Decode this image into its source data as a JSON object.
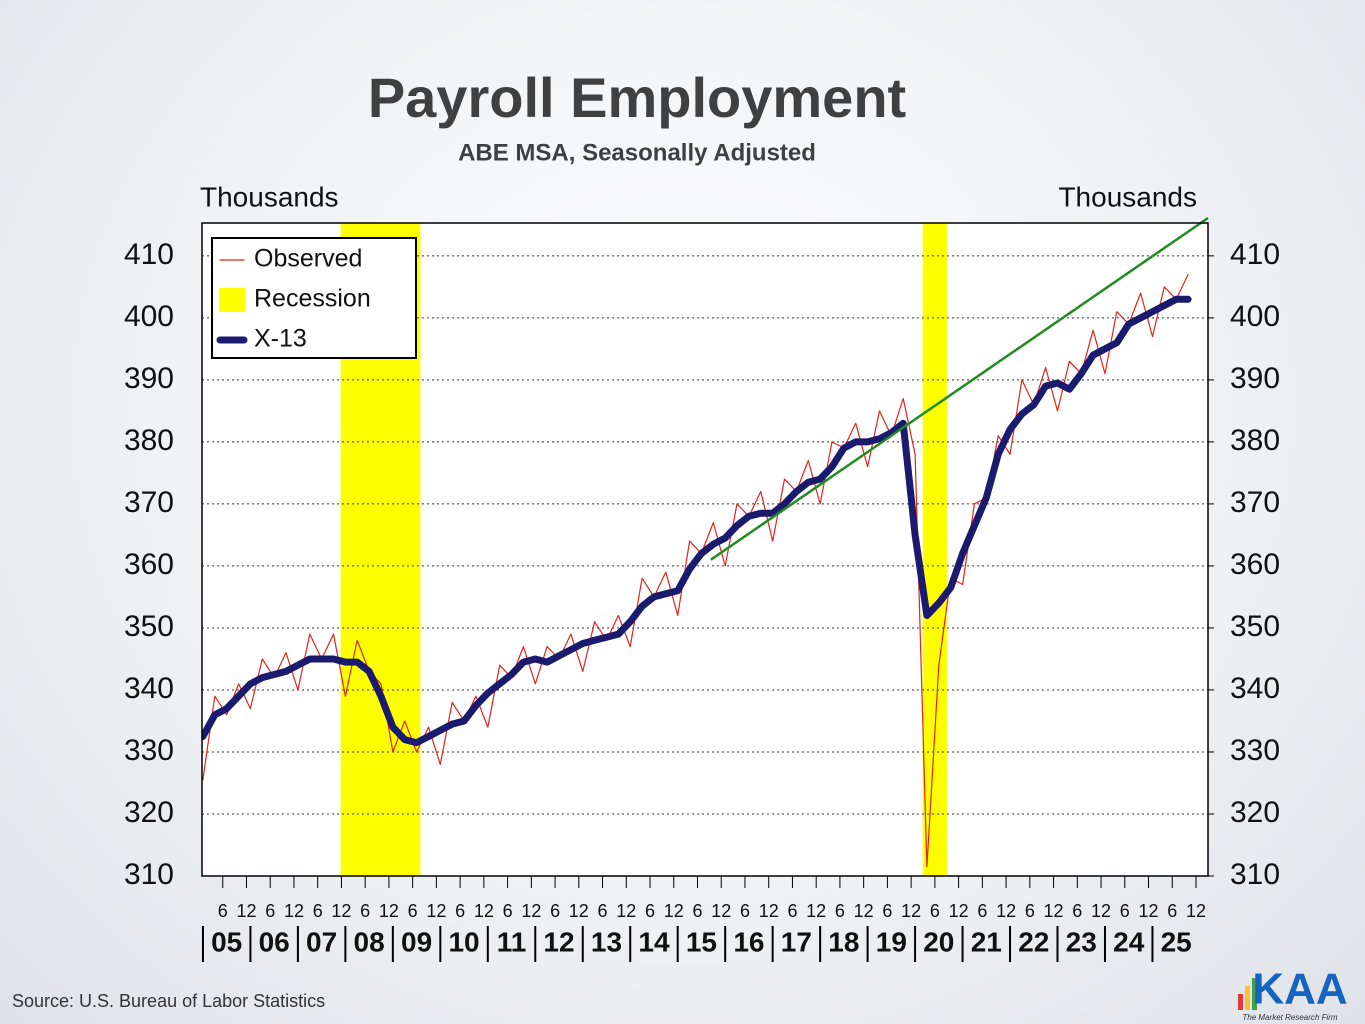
{
  "chart_data": {
    "type": "line",
    "title": "Payroll Employment",
    "subtitle": "ABE MSA,  Seasonally Adjusted",
    "y_label": "Thousands",
    "y2_label": "Thousands",
    "source": "Source: U.S. Bureau of Labor Statistics",
    "logo": {
      "text": "KAA",
      "tagline": "The Market Research Firm"
    },
    "grid": true,
    "legend_position": "upper-left",
    "xlim": [
      2004.98,
      2026.17
    ],
    "ylim": [
      310,
      415.3
    ],
    "y2lim": [
      310,
      415.3
    ],
    "yticks": [
      310,
      320,
      330,
      340,
      350,
      360,
      370,
      380,
      390,
      400,
      410
    ],
    "y2ticks": [
      310,
      320,
      330,
      340,
      350,
      360,
      370,
      380,
      390,
      400,
      410
    ],
    "xticks": [
      {
        "value": 2005.417,
        "label": "6"
      },
      {
        "value": 2005.917,
        "label": "12"
      },
      {
        "value": 2006.417,
        "label": "6"
      },
      {
        "value": 2006.917,
        "label": "12"
      },
      {
        "value": 2007.417,
        "label": "6"
      },
      {
        "value": 2007.917,
        "label": "12"
      },
      {
        "value": 2008.417,
        "label": "6"
      },
      {
        "value": 2008.917,
        "label": "12"
      },
      {
        "value": 2009.417,
        "label": "6"
      },
      {
        "value": 2009.917,
        "label": "12"
      },
      {
        "value": 2010.417,
        "label": "6"
      },
      {
        "value": 2010.917,
        "label": "12"
      },
      {
        "value": 2011.417,
        "label": "6"
      },
      {
        "value": 2011.917,
        "label": "12"
      },
      {
        "value": 2012.417,
        "label": "6"
      },
      {
        "value": 2012.917,
        "label": "12"
      },
      {
        "value": 2013.417,
        "label": "6"
      },
      {
        "value": 2013.917,
        "label": "12"
      },
      {
        "value": 2014.417,
        "label": "6"
      },
      {
        "value": 2014.917,
        "label": "12"
      },
      {
        "value": 2015.417,
        "label": "6"
      },
      {
        "value": 2015.917,
        "label": "12"
      },
      {
        "value": 2016.417,
        "label": "6"
      },
      {
        "value": 2016.917,
        "label": "12"
      },
      {
        "value": 2017.417,
        "label": "6"
      },
      {
        "value": 2017.917,
        "label": "12"
      },
      {
        "value": 2018.417,
        "label": "6"
      },
      {
        "value": 2018.917,
        "label": "12"
      },
      {
        "value": 2019.417,
        "label": "6"
      },
      {
        "value": 2019.917,
        "label": "12"
      },
      {
        "value": 2020.417,
        "label": "6"
      },
      {
        "value": 2020.917,
        "label": "12"
      },
      {
        "value": 2021.417,
        "label": "6"
      },
      {
        "value": 2021.917,
        "label": "12"
      },
      {
        "value": 2022.417,
        "label": "6"
      },
      {
        "value": 2022.917,
        "label": "12"
      },
      {
        "value": 2023.417,
        "label": "6"
      },
      {
        "value": 2023.917,
        "label": "12"
      },
      {
        "value": 2024.417,
        "label": "6"
      },
      {
        "value": 2024.917,
        "label": "12"
      },
      {
        "value": 2025.417,
        "label": "6"
      },
      {
        "value": 2025.917,
        "label": "12"
      }
    ],
    "year_ticks": [
      {
        "value": 2005.5,
        "label": "05"
      },
      {
        "value": 2006.5,
        "label": "06"
      },
      {
        "value": 2007.5,
        "label": "07"
      },
      {
        "value": 2008.5,
        "label": "08"
      },
      {
        "value": 2009.5,
        "label": "09"
      },
      {
        "value": 2010.5,
        "label": "10"
      },
      {
        "value": 2011.5,
        "label": "11"
      },
      {
        "value": 2012.5,
        "label": "12"
      },
      {
        "value": 2013.5,
        "label": "13"
      },
      {
        "value": 2014.5,
        "label": "14"
      },
      {
        "value": 2015.5,
        "label": "15"
      },
      {
        "value": 2016.5,
        "label": "16"
      },
      {
        "value": 2017.5,
        "label": "17"
      },
      {
        "value": 2018.5,
        "label": "18"
      },
      {
        "value": 2019.5,
        "label": "19"
      },
      {
        "value": 2020.5,
        "label": "20"
      },
      {
        "value": 2021.5,
        "label": "21"
      },
      {
        "value": 2022.5,
        "label": "22"
      },
      {
        "value": 2023.5,
        "label": "23"
      },
      {
        "value": 2024.5,
        "label": "24"
      },
      {
        "value": 2025.5,
        "label": "25"
      }
    ],
    "recession": {
      "name": "Recession",
      "color": "#ffff00",
      "spans": [
        [
          2007.9,
          2009.58
        ],
        [
          2020.16,
          2020.67
        ]
      ]
    },
    "x": [
      2005,
      2005.25,
      2005.5,
      2005.75,
      2006,
      2006.25,
      2006.5,
      2006.75,
      2007,
      2007.25,
      2007.5,
      2007.75,
      2008,
      2008.25,
      2008.5,
      2008.75,
      2009,
      2009.25,
      2009.5,
      2009.75,
      2010,
      2010.25,
      2010.5,
      2010.75,
      2011,
      2011.25,
      2011.5,
      2011.75,
      2012,
      2012.25,
      2012.5,
      2012.75,
      2013,
      2013.25,
      2013.5,
      2013.75,
      2014,
      2014.25,
      2014.5,
      2014.75,
      2015,
      2015.25,
      2015.5,
      2015.75,
      2016,
      2016.25,
      2016.5,
      2016.75,
      2017,
      2017.25,
      2017.5,
      2017.75,
      2018,
      2018.25,
      2018.5,
      2018.75,
      2019,
      2019.25,
      2019.5,
      2019.75,
      2020,
      2020.25,
      2020.5,
      2020.75,
      2021,
      2021.25,
      2021.5,
      2021.75,
      2022,
      2022.25,
      2022.5,
      2022.75,
      2023,
      2023.25,
      2023.5,
      2023.75,
      2024,
      2024.25,
      2024.5,
      2024.75,
      2025,
      2025.25,
      2025.5,
      2025.75
    ],
    "series": [
      {
        "name": "Observed",
        "color": "#e0241b",
        "width": 1.2,
        "values": [
          325.5,
          339,
          336,
          341,
          337,
          345,
          342,
          346,
          340,
          349,
          345,
          349,
          339,
          348,
          343,
          341,
          330,
          335,
          330,
          334,
          328,
          338,
          335,
          339,
          334,
          344,
          342,
          347,
          341,
          347,
          345,
          349,
          343,
          351,
          348,
          352,
          347,
          358,
          355,
          359,
          352,
          364,
          362,
          367,
          360,
          370,
          368,
          372,
          364,
          374,
          372,
          377,
          370,
          380,
          379,
          383,
          376,
          385,
          381,
          387,
          378,
          311.5,
          344,
          358,
          357,
          370,
          371,
          381,
          378,
          390,
          386,
          392,
          385,
          393,
          391,
          398,
          391,
          401,
          399,
          404,
          397,
          405,
          403,
          407
        ]
      },
      {
        "name": "X-13",
        "color": "#1a1a6e",
        "width": 7,
        "values": [
          332.5,
          336,
          337,
          339,
          341,
          342,
          342.5,
          343,
          344,
          345,
          345,
          345,
          344.5,
          344.5,
          343,
          339,
          334,
          332,
          331.5,
          332.5,
          333.5,
          334.5,
          335,
          337.5,
          339.5,
          341,
          342.5,
          344.5,
          345,
          344.5,
          345.5,
          346.5,
          347.5,
          348,
          348.5,
          349,
          351,
          353.5,
          355,
          355.5,
          356,
          359.5,
          362,
          363.5,
          364.5,
          366.5,
          368,
          368.5,
          368.5,
          370,
          372,
          373.5,
          374,
          376,
          379,
          380,
          380,
          380.5,
          381.5,
          383,
          365,
          352,
          354,
          356.5,
          362,
          366.5,
          371,
          378,
          382,
          384.5,
          386,
          389,
          389.5,
          388.5,
          391,
          394,
          395,
          396,
          399,
          400,
          401,
          402,
          403,
          403
        ]
      }
    ],
    "trend_line": {
      "color": "#1e8c1e",
      "x": [
        2015.7,
        2026.17
      ],
      "values": [
        361,
        416.1
      ]
    }
  }
}
